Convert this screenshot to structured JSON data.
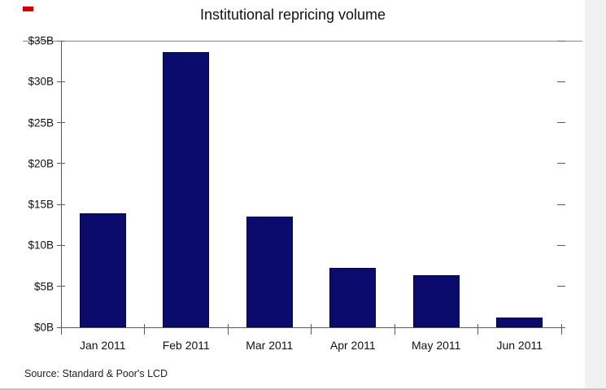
{
  "chart_data": {
    "type": "bar",
    "title": "Institutional repricing volume",
    "categories": [
      "Jan 2011",
      "Feb 2011",
      "Mar 2011",
      "Apr 2011",
      "May 2011",
      "Jun 2011"
    ],
    "values": [
      13.9,
      33.6,
      13.5,
      7.3,
      6.4,
      1.2
    ],
    "unit": "$B",
    "ylim": [
      0,
      35
    ],
    "ytick_step": 5,
    "ytick_labels": [
      "$0B",
      "$5B",
      "$10B",
      "$15B",
      "$20B",
      "$25B",
      "$30B",
      "$35B"
    ],
    "bar_color": "#0b0b6e",
    "bar_border_color": "#05053f",
    "grid": false,
    "legend": false,
    "source": "Source: Standard & Poor's LCD"
  }
}
